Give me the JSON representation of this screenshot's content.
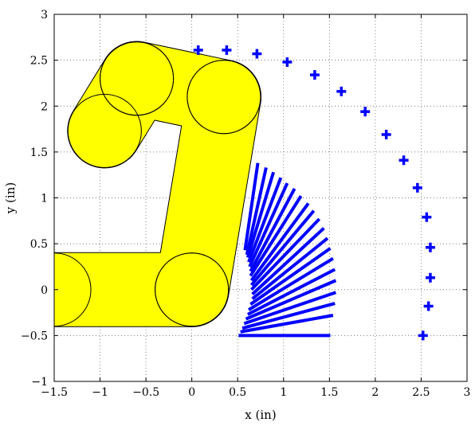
{
  "chart_data": {
    "type": "scatter",
    "title": "",
    "xlabel": "x (in)",
    "ylabel": "y (in)",
    "xlim": [
      -1.5,
      3
    ],
    "ylim": [
      -1,
      3
    ],
    "grid": true,
    "legend": "none",
    "x_ticks": [
      -1.5,
      -1,
      -0.5,
      0,
      0.5,
      1,
      1.5,
      2,
      2.5,
      3
    ],
    "y_ticks": [
      -1,
      -0.5,
      0,
      0.5,
      1,
      1.5,
      2,
      2.5,
      3
    ],
    "x_tick_labels": [
      "−1.5",
      "−1",
      "−0.5",
      "0",
      "0.5",
      "1",
      "1.5",
      "2",
      "2.5",
      "3"
    ],
    "y_tick_labels": [
      "−1",
      "−0.5",
      "0",
      "0.5",
      "1",
      "1.5",
      "2",
      "2.5",
      "3"
    ],
    "colors": {
      "marker": "#0000ff",
      "link_fill": "#ffff00",
      "link_edge": "#000000",
      "grid": "#555555"
    },
    "link_width": 0.8,
    "links": [
      {
        "from": [
          -1.5,
          0
        ],
        "to": [
          0,
          0
        ]
      },
      {
        "from": [
          0,
          0
        ],
        "to": [
          0.35,
          2.1
        ]
      },
      {
        "from": [
          0.35,
          2.1
        ],
        "to": [
          -0.6,
          2.3
        ]
      },
      {
        "from": [
          -0.6,
          2.3
        ],
        "to": [
          -0.95,
          1.73
        ]
      }
    ],
    "markers": {
      "symbol": "plus",
      "x": [
        0.07,
        0.38,
        0.71,
        1.04,
        1.34,
        1.63,
        1.89,
        2.12,
        2.31,
        2.46,
        2.56,
        2.6,
        2.6,
        2.58,
        2.52
      ],
      "y": [
        2.61,
        2.61,
        2.57,
        2.48,
        2.34,
        2.16,
        1.94,
        1.69,
        1.41,
        1.11,
        0.79,
        0.46,
        0.13,
        -0.18,
        -0.5
      ]
    },
    "segments": [
      {
        "from": [
          0.72,
          1.38
        ],
        "to": [
          0.58,
          0.43
        ]
      },
      {
        "from": [
          0.81,
          1.33
        ],
        "to": [
          0.6,
          0.38
        ]
      },
      {
        "from": [
          0.89,
          1.28
        ],
        "to": [
          0.61,
          0.35
        ]
      },
      {
        "from": [
          0.97,
          1.22
        ],
        "to": [
          0.62,
          0.3
        ]
      },
      {
        "from": [
          1.04,
          1.16
        ],
        "to": [
          0.63,
          0.25
        ]
      },
      {
        "from": [
          1.12,
          1.1
        ],
        "to": [
          0.64,
          0.2
        ]
      },
      {
        "from": [
          1.19,
          1.02
        ],
        "to": [
          0.64,
          0.15
        ]
      },
      {
        "from": [
          1.27,
          0.94
        ],
        "to": [
          0.65,
          0.1
        ]
      },
      {
        "from": [
          1.33,
          0.86
        ],
        "to": [
          0.65,
          0.05
        ]
      },
      {
        "from": [
          1.39,
          0.77
        ],
        "to": [
          0.65,
          0
        ]
      },
      {
        "from": [
          1.44,
          0.67
        ],
        "to": [
          0.66,
          -0.05
        ]
      },
      {
        "from": [
          1.48,
          0.56
        ],
        "to": [
          0.66,
          -0.1
        ]
      },
      {
        "from": [
          1.51,
          0.45
        ],
        "to": [
          0.64,
          -0.16
        ]
      },
      {
        "from": [
          1.54,
          0.34
        ],
        "to": [
          0.62,
          -0.22
        ]
      },
      {
        "from": [
          1.56,
          0.22
        ],
        "to": [
          0.61,
          -0.27
        ]
      },
      {
        "from": [
          1.57,
          0.1
        ],
        "to": [
          0.59,
          -0.32
        ]
      },
      {
        "from": [
          1.57,
          -0.03
        ],
        "to": [
          0.57,
          -0.37
        ]
      },
      {
        "from": [
          1.56,
          -0.15
        ],
        "to": [
          0.55,
          -0.42
        ]
      },
      {
        "from": [
          1.54,
          -0.28
        ],
        "to": [
          0.53,
          -0.46
        ]
      },
      {
        "from": [
          1.51,
          -0.5
        ],
        "to": [
          0.51,
          -0.5
        ]
      }
    ]
  }
}
